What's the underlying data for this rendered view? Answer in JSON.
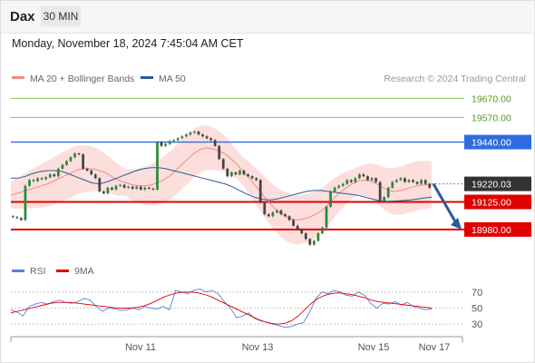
{
  "header": {
    "symbol": "Dax",
    "timeframe": "30 MIN",
    "timestamp": "Monday, November 18, 2024 7:45:04 AM CET"
  },
  "legend": {
    "items": [
      {
        "label": "MA 20 + Bollinger Bands",
        "color": "#f08a84"
      },
      {
        "label": "MA 50",
        "color": "#2d5a9c"
      }
    ],
    "credit": "Research © 2024 Trading Central"
  },
  "chart_data": [
    {
      "type": "candlestick",
      "title": "",
      "x_ticks": [
        "Nov 11",
        "Nov 13",
        "Nov 15",
        "Nov 17"
      ],
      "ylim": [
        18860,
        19710
      ],
      "last_price": 19220.03,
      "levels": [
        {
          "value": 19670.0,
          "label": "19670.00",
          "style": "target",
          "color": "#8ec04f"
        },
        {
          "value": 19570.0,
          "label": "19570.00",
          "style": "target",
          "color": "#8ec04f"
        },
        {
          "value": 19440.0,
          "label": "19440.00",
          "style": "resistance",
          "color": "#2e6de0"
        },
        {
          "value": 19220.03,
          "label": "19220.03",
          "style": "last",
          "color": "#333333"
        },
        {
          "value": 19125.0,
          "label": "19125.00",
          "style": "pivot",
          "color": "#e00000"
        },
        {
          "value": 18980.0,
          "label": "18980.00",
          "style": "support",
          "color": "#e00000"
        }
      ],
      "forecast": {
        "direction": "down",
        "from": 19220.03,
        "to": 18980.0,
        "color": "#2d5a9c"
      },
      "candles_close": [
        19045,
        19040,
        19030,
        19210,
        19240,
        19235,
        19250,
        19245,
        19255,
        19270,
        19260,
        19300,
        19320,
        19340,
        19360,
        19380,
        19375,
        19300,
        19290,
        19270,
        19250,
        19180,
        19170,
        19200,
        19190,
        19210,
        19215,
        19200,
        19205,
        19195,
        19205,
        19190,
        19200,
        19195,
        19190,
        19440,
        19420,
        19430,
        19445,
        19450,
        19460,
        19470,
        19480,
        19490,
        19495,
        19480,
        19470,
        19460,
        19450,
        19420,
        19350,
        19300,
        19260,
        19280,
        19270,
        19290,
        19270,
        19260,
        19250,
        19240,
        19120,
        19060,
        19050,
        19070,
        19080,
        19060,
        19050,
        19030,
        19000,
        18980,
        18960,
        18930,
        18900,
        18920,
        18960,
        18990,
        19100,
        19180,
        19200,
        19210,
        19220,
        19240,
        19230,
        19250,
        19270,
        19260,
        19240,
        19250,
        19230,
        19130,
        19150,
        19200,
        19230,
        19240,
        19250,
        19230,
        19240,
        19230,
        19220,
        19240,
        19220,
        19200
      ],
      "ma20": [
        19160,
        19170,
        19180,
        19190,
        19200,
        19210,
        19220,
        19235,
        19250,
        19265,
        19280,
        19295,
        19300,
        19300,
        19295,
        19285,
        19270,
        19250,
        19235,
        19225,
        19215,
        19210,
        19210,
        19215,
        19225,
        19240,
        19260,
        19290,
        19320,
        19350,
        19380,
        19400,
        19410,
        19405,
        19395,
        19380,
        19355,
        19325,
        19290,
        19255,
        19215,
        19175,
        19135,
        19100,
        19070,
        19050,
        19035,
        19030,
        19035,
        19045,
        19060,
        19080,
        19110,
        19145,
        19175,
        19200,
        19220,
        19235,
        19240,
        19235,
        19220,
        19200,
        19185,
        19180,
        19185,
        19195,
        19205,
        19212,
        19215,
        19218
      ],
      "ma50": [
        19250,
        19250,
        19260,
        19275,
        19285,
        19290,
        19290,
        19285,
        19270,
        19255,
        19240,
        19225,
        19220,
        19230,
        19245,
        19260,
        19275,
        19290,
        19300,
        19305,
        19305,
        19300,
        19290,
        19280,
        19270,
        19260,
        19250,
        19240,
        19230,
        19220,
        19205,
        19185,
        19165,
        19150,
        19140,
        19135,
        19140,
        19150,
        19160,
        19170,
        19180,
        19185,
        19185,
        19180,
        19175,
        19170,
        19165,
        19160,
        19150,
        19140,
        19130,
        19128,
        19130,
        19132,
        19135,
        19140,
        19145,
        19150
      ]
    },
    {
      "type": "line",
      "title": "",
      "legend": [
        {
          "label": "RSI",
          "color": "#5b7fd8"
        },
        {
          "label": "9MA",
          "color": "#e00000"
        }
      ],
      "y_ticks": [
        "70",
        "50",
        "30"
      ],
      "ylim": [
        20,
        80
      ],
      "rsi": [
        48,
        45,
        40,
        52,
        55,
        57,
        55,
        58,
        60,
        57,
        56,
        58,
        62,
        60,
        52,
        46,
        50,
        49,
        47,
        48,
        50,
        48,
        52,
        50,
        49,
        52,
        48,
        72,
        70,
        68,
        72,
        74,
        70,
        72,
        68,
        58,
        50,
        38,
        40,
        44,
        37,
        34,
        32,
        30,
        28,
        26,
        27,
        30,
        32,
        45,
        62,
        70,
        68,
        72,
        70,
        66,
        65,
        70,
        66,
        56,
        50,
        56,
        55,
        58,
        54,
        57,
        52,
        50,
        48,
        49
      ],
      "ma9": [
        44,
        46,
        48,
        50,
        52,
        54,
        56,
        57,
        57,
        57,
        56,
        55,
        54,
        53,
        52,
        51,
        50,
        50,
        50,
        51,
        53,
        56,
        60,
        64,
        67,
        69,
        70,
        70,
        69,
        67,
        64,
        60,
        56,
        52,
        48,
        44,
        40,
        36,
        33,
        31,
        30,
        31,
        34,
        40,
        48,
        56,
        62,
        66,
        68,
        69,
        68,
        67,
        65,
        63,
        60,
        58,
        57,
        56,
        55,
        54,
        53,
        52,
        51,
        50
      ]
    }
  ]
}
